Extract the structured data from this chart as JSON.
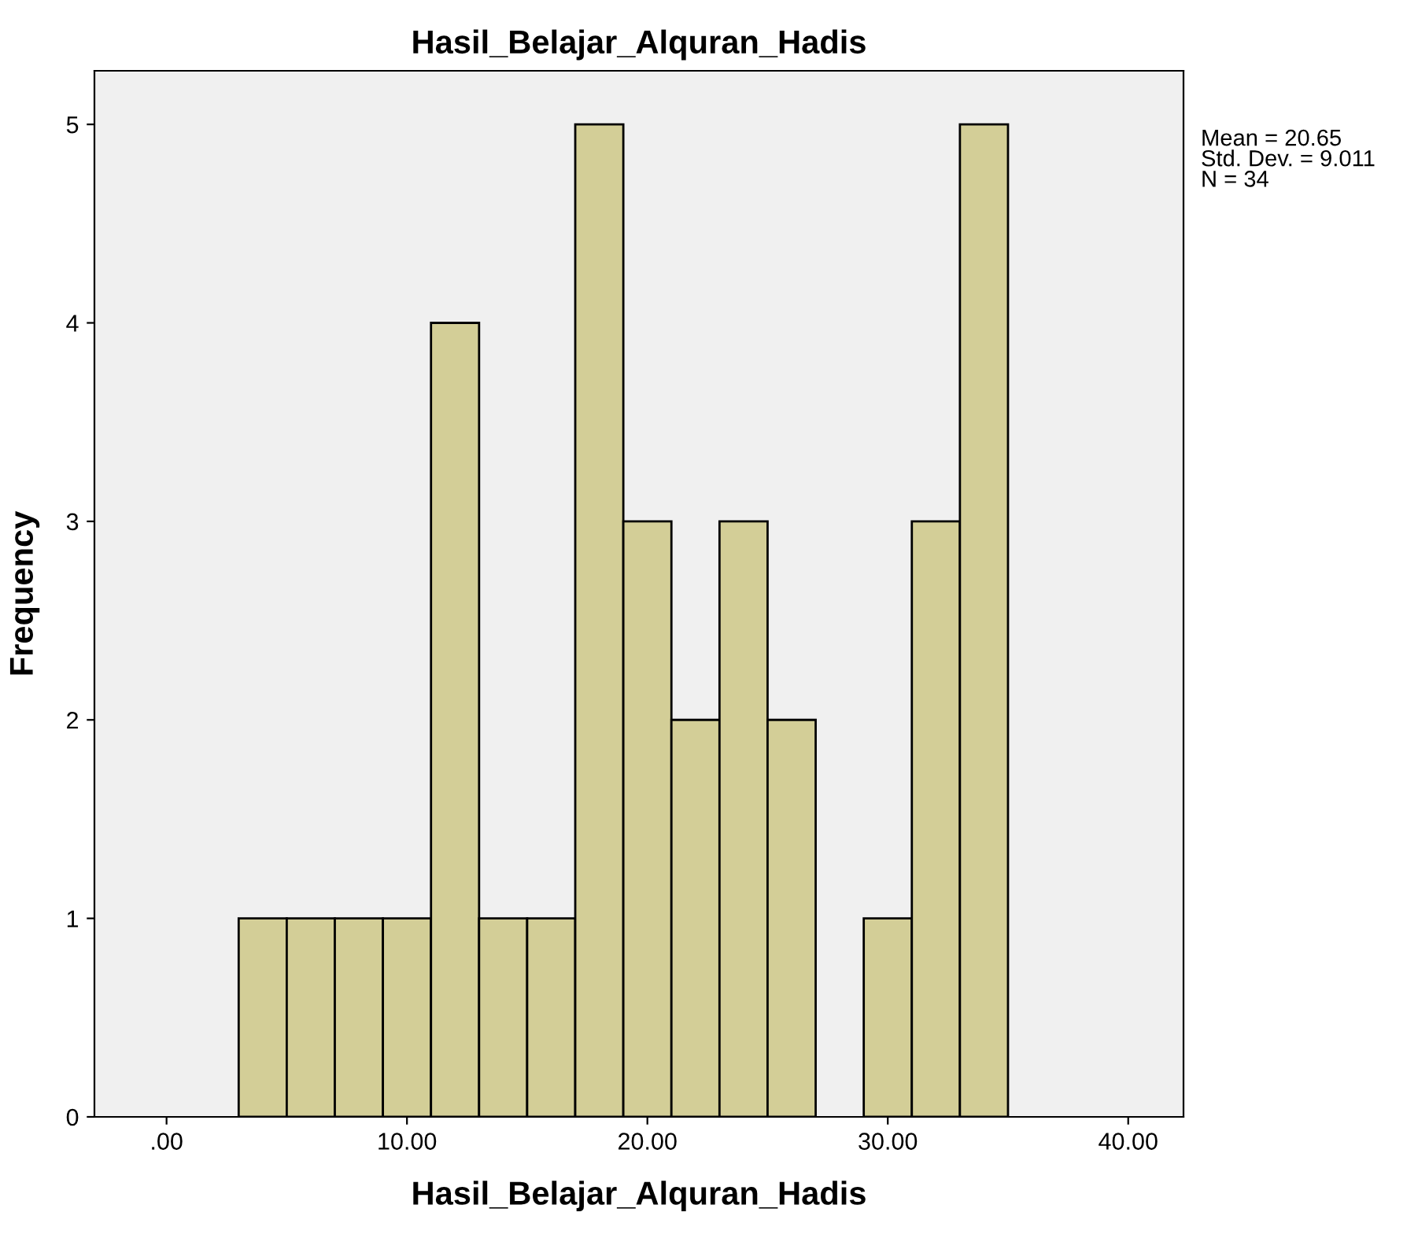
{
  "chart_data": {
    "type": "histogram",
    "title": "Hasil_Belajar_Alquran_Hadis",
    "xlabel": "Hasil_Belajar_Alquran_Hadis",
    "ylabel": "Frequency",
    "bins": [
      3,
      5,
      7,
      9,
      11,
      13,
      15,
      17,
      19,
      21,
      23,
      25,
      27,
      29,
      31,
      33,
      35
    ],
    "values": [
      1,
      1,
      1,
      1,
      4,
      1,
      1,
      5,
      3,
      2,
      3,
      2,
      0,
      1,
      3,
      5
    ],
    "color": "#d3ce97",
    "xlim": [
      -3,
      42.3
    ],
    "xticks": [
      {
        "value": 0,
        "label": ".00"
      },
      {
        "value": 10,
        "label": "10.00"
      },
      {
        "value": 20,
        "label": "20.00"
      },
      {
        "value": 30,
        "label": "30.00"
      },
      {
        "value": 40,
        "label": "40.00"
      }
    ],
    "ylim": [
      0,
      5.27
    ],
    "yticks": [
      0,
      1,
      2,
      3,
      4,
      5
    ],
    "annotations": [
      "Mean = 20.65\nStd. Dev. = 9.011\nN = 34"
    ]
  }
}
